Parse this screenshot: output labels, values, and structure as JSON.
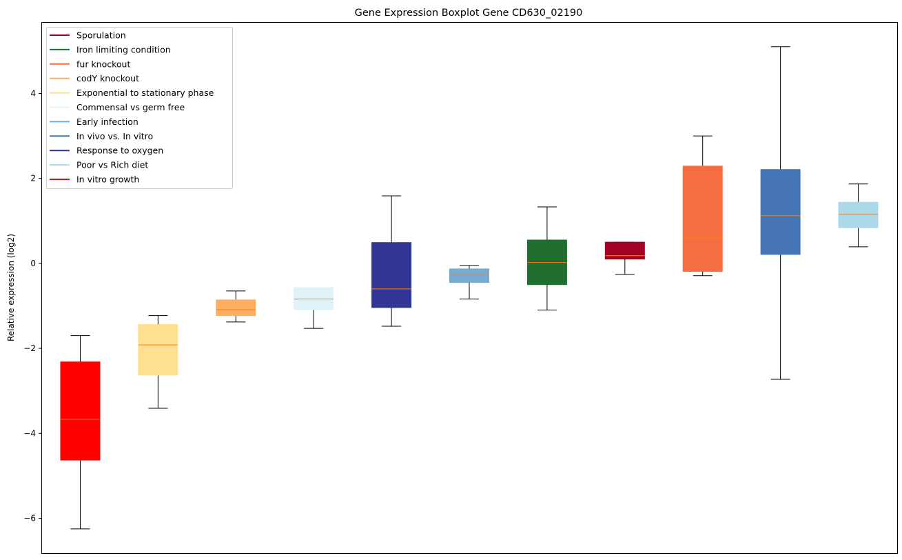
{
  "chart_data": {
    "type": "boxplot",
    "title": "Gene Expression Boxplot Gene CD630_02190",
    "xlabel": "",
    "ylabel": "Relative expression (log2)",
    "ylim": [
      -6.82,
      5.68
    ],
    "yticks": [
      -6,
      -4,
      -2,
      0,
      2,
      4
    ],
    "grid": false,
    "legend_placement": "top-left",
    "legend": [
      {
        "label": "Sporulation",
        "color": "#a50026"
      },
      {
        "label": "Iron limiting condition",
        "color": "#1f6e30"
      },
      {
        "label": "fur knockout",
        "color": "#f46d43"
      },
      {
        "label": "codY knockout",
        "color": "#fdae61"
      },
      {
        "label": "Exponential to stationary phase",
        "color": "#fee090"
      },
      {
        "label": "Commensal vs germ free",
        "color": "#e0f3f8"
      },
      {
        "label": "Early infection",
        "color": "#74add1"
      },
      {
        "label": "In vivo vs. In vitro",
        "color": "#4575b4"
      },
      {
        "label": "Response to oxygen",
        "color": "#313695"
      },
      {
        "label": "Poor vs Rich diet",
        "color": "#abd9e9"
      },
      {
        "label": "In vitro growth",
        "color": "#ff0000"
      }
    ],
    "boxes": [
      {
        "name": "In vitro growth",
        "color": "#ff0000",
        "whislo": -6.25,
        "q1": -4.63,
        "med": -3.67,
        "q3": -2.32,
        "whishi": -1.7
      },
      {
        "name": "Exponential to stationary phase",
        "color": "#fee090",
        "whislo": -3.41,
        "q1": -2.63,
        "med": -1.92,
        "q3": -1.44,
        "whishi": -1.23
      },
      {
        "name": "codY knockout",
        "color": "#fdae61",
        "whislo": -1.38,
        "q1": -1.23,
        "med": -1.09,
        "q3": -0.86,
        "whishi": -0.65
      },
      {
        "name": "Commensal vs germ free",
        "color": "#e0f3f8",
        "whislo": -1.53,
        "q1": -1.09,
        "med": -0.84,
        "q3": -0.57,
        "whishi": -0.57
      },
      {
        "name": "Response to oxygen",
        "color": "#313695",
        "whislo": -1.48,
        "q1": -1.04,
        "med": -0.6,
        "q3": 0.49,
        "whishi": 1.59
      },
      {
        "name": "Early infection",
        "color": "#74add1",
        "whislo": -0.84,
        "q1": -0.45,
        "med": -0.26,
        "q3": -0.13,
        "whishi": -0.05
      },
      {
        "name": "Iron limiting condition",
        "color": "#1f6e30",
        "whislo": -1.1,
        "q1": -0.5,
        "med": 0.02,
        "q3": 0.55,
        "whishi": 1.33
      },
      {
        "name": "Sporulation",
        "color": "#a50026",
        "whislo": -0.26,
        "q1": 0.1,
        "med": 0.18,
        "q3": 0.5,
        "whishi": 0.5
      },
      {
        "name": "fur knockout",
        "color": "#f46d43",
        "whislo": -0.29,
        "q1": -0.19,
        "med": 0.6,
        "q3": 2.29,
        "whishi": 3.0
      },
      {
        "name": "In vivo vs. In vitro",
        "color": "#4575b4",
        "whislo": -2.73,
        "q1": 0.21,
        "med": 1.12,
        "q3": 2.21,
        "whishi": 5.1
      },
      {
        "name": "Poor vs Rich diet",
        "color": "#abd9e9",
        "whislo": 0.39,
        "q1": 0.84,
        "med": 1.15,
        "q3": 1.44,
        "whishi": 1.87
      }
    ],
    "median_color": "#ff7f0e"
  }
}
